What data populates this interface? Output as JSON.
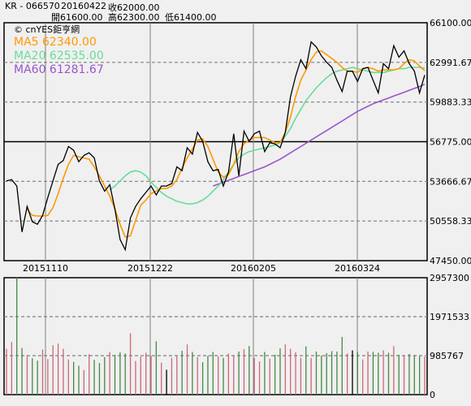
{
  "header": {
    "symbol": "KR - 066570",
    "date": "20160422",
    "close_label": "收62000.00",
    "open_label": "開61600.00",
    "high_label": "高62300.00",
    "low_label": "低61400.00"
  },
  "watermark": "© cnYES鉅亨網",
  "legend": [
    {
      "text": "MA5 62340.00",
      "color": "#ff9900"
    },
    {
      "text": "MA20 62535.00",
      "color": "#66dd99"
    },
    {
      "text": "MA60 61281.67",
      "color": "#9955cc"
    }
  ],
  "colors": {
    "price": "#000000",
    "volume_up": "#cc6677",
    "volume_down": "#448844",
    "volume_flat": "#000000",
    "grid": "#808080",
    "background": "#f0f0f0"
  },
  "chart_data": [
    {
      "type": "line",
      "name_ref": "price-panel",
      "y_ticks": [
        "66100.00",
        "62991.67",
        "59883.33",
        "56775.00",
        "53666.67",
        "50558.33",
        "47450.00"
      ],
      "x_ticks": [
        "20151110",
        "20151222",
        "20160205",
        "20160324"
      ],
      "ylim": [
        47450,
        66100
      ],
      "series": [
        {
          "name": "MA5",
          "color": "#ff9900",
          "values": [
            null,
            null,
            null,
            null,
            51500,
            51000,
            50950,
            50950,
            51000,
            51600,
            52700,
            53900,
            55000,
            55700,
            55600,
            55500,
            55400,
            54800,
            54100,
            53300,
            52500,
            51500,
            50300,
            49300,
            49400,
            50600,
            51800,
            52200,
            52700,
            52900,
            53100,
            53100,
            53300,
            53800,
            54700,
            55500,
            56200,
            56900,
            57000,
            56400,
            55400,
            54400,
            54000,
            54200,
            55000,
            56000,
            56600,
            56900,
            57100,
            57100,
            57100,
            56900,
            56700,
            56700,
            57500,
            58700,
            60300,
            61600,
            62400,
            63200,
            63800,
            63900,
            63600,
            63300,
            63000,
            62600,
            62300,
            62300,
            62200,
            62500,
            62600,
            62500,
            62300,
            62400,
            62400,
            62400,
            62500,
            62900,
            63200,
            63100,
            62700,
            62340
          ]
        },
        {
          "name": "MA20",
          "color": "#66dd99",
          "values": [
            null,
            null,
            null,
            null,
            null,
            null,
            null,
            null,
            null,
            null,
            null,
            null,
            null,
            null,
            null,
            null,
            null,
            null,
            null,
            null,
            53000,
            53300,
            53700,
            54100,
            54400,
            54500,
            54400,
            54100,
            53600,
            53200,
            52800,
            52500,
            52300,
            52100,
            52000,
            51900,
            51900,
            52000,
            52200,
            52500,
            52900,
            53300,
            53800,
            54400,
            55000,
            55500,
            55800,
            56000,
            56100,
            56200,
            56300,
            56400,
            56500,
            56700,
            57200,
            57800,
            58600,
            59300,
            60000,
            60500,
            61000,
            61400,
            61800,
            62100,
            62300,
            62400,
            62500,
            62600,
            62500,
            62400,
            62300,
            62200,
            62200,
            62200,
            62300,
            62400,
            62500,
            62500,
            62600,
            62600,
            62600,
            62535
          ]
        },
        {
          "name": "MA60",
          "color": "#9955cc",
          "values": [
            null,
            null,
            null,
            null,
            null,
            null,
            null,
            null,
            null,
            null,
            null,
            null,
            null,
            null,
            null,
            null,
            null,
            null,
            null,
            null,
            null,
            null,
            null,
            null,
            null,
            null,
            null,
            null,
            null,
            null,
            null,
            null,
            null,
            null,
            null,
            null,
            null,
            null,
            null,
            null,
            53300,
            53450,
            53600,
            53750,
            53900,
            54050,
            54200,
            54350,
            54500,
            54650,
            54800,
            55000,
            55200,
            55400,
            55650,
            55900,
            56150,
            56400,
            56650,
            56900,
            57150,
            57400,
            57650,
            57900,
            58150,
            58400,
            58650,
            58900,
            59150,
            59350,
            59550,
            59750,
            59900,
            60050,
            60200,
            60350,
            60500,
            60650,
            60800,
            60950,
            61100,
            61281.67
          ]
        },
        {
          "name": "Close",
          "color": "#000000",
          "values": [
            53700,
            53800,
            53300,
            49700,
            51700,
            50500,
            50300,
            51000,
            52400,
            53700,
            55000,
            55300,
            56400,
            56100,
            55200,
            55700,
            55900,
            55500,
            53700,
            52900,
            53400,
            51500,
            49100,
            48300,
            50800,
            51700,
            52300,
            52800,
            53300,
            52600,
            53300,
            53300,
            53500,
            54800,
            54500,
            56300,
            55800,
            57500,
            56800,
            55200,
            54500,
            54600,
            53300,
            54400,
            57400,
            54100,
            57600,
            56800,
            57400,
            57600,
            56000,
            56700,
            56600,
            56300,
            57500,
            60300,
            61900,
            63200,
            62500,
            64600,
            64200,
            63500,
            63000,
            62600,
            61600,
            60700,
            62300,
            62300,
            61500,
            62500,
            62600,
            61600,
            60600,
            62900,
            62500,
            64300,
            63400,
            63900,
            62900,
            62300,
            60600,
            62000
          ]
        }
      ]
    },
    {
      "type": "bar",
      "name_ref": "volume-panel",
      "y_ticks": [
        "2957300",
        "1971533",
        "985767",
        "0"
      ],
      "ylim": [
        0,
        2957300
      ],
      "values": [
        1160000,
        1330000,
        2960000,
        1180000,
        1000000,
        920000,
        860000,
        1140000,
        900000,
        1250000,
        1290000,
        1160000,
        890000,
        830000,
        730000,
        620000,
        1020000,
        880000,
        800000,
        950000,
        1080000,
        1010000,
        1070000,
        1040000,
        1550000,
        850000,
        960000,
        1060000,
        980000,
        1350000,
        810000,
        630000,
        930000,
        980000,
        1110000,
        1270000,
        1080000,
        950000,
        820000,
        980000,
        1080000,
        970000,
        930000,
        1040000,
        980000,
        1090000,
        1150000,
        1230000,
        930000,
        840000,
        1080000,
        910000,
        1010000,
        1170000,
        1270000,
        1160000,
        1070000,
        930000,
        1220000,
        930000,
        1090000,
        990000,
        1050000,
        1100000,
        1090000,
        1460000,
        1040000,
        1120000,
        1080000,
        890000,
        1090000,
        1080000,
        1060000,
        1120000,
        1060000,
        1230000,
        1010000,
        980000,
        1030000,
        1000000,
        970000,
        960000
      ],
      "colors_up_down": "up"
    }
  ]
}
